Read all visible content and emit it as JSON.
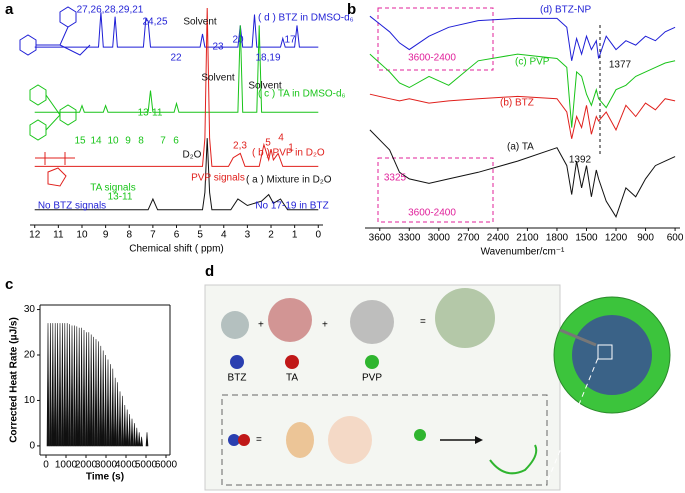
{
  "chart_data": [
    {
      "type": "line",
      "label": "a",
      "xlabel": "Chemical shift ( ppm)",
      "xlim": [
        12.2,
        -0.2
      ],
      "xticks": [
        12,
        11,
        10,
        9,
        8,
        7,
        6,
        5,
        4,
        3,
        2,
        1,
        0
      ],
      "ylim": [
        0,
        100
      ],
      "series": [
        {
          "name": "( d ) BTZ in DMSO-d₆",
          "color": "#1f1fd6",
          "x": [
            12,
            10,
            9.3,
            9.2,
            9.1,
            8.7,
            8.6,
            8.5,
            7.4,
            7.3,
            7.2,
            7.1,
            5.0,
            4.9,
            4.8,
            3.4,
            3.3,
            3.2,
            2.8,
            2.7,
            2.6,
            1.6,
            1.5,
            1.4,
            1.0,
            0.9,
            0.8,
            0
          ],
          "values": [
            82,
            82,
            82,
            98,
            82,
            82,
            96,
            82,
            82,
            95,
            94,
            82,
            82,
            88,
            82,
            82,
            92,
            82,
            82,
            97,
            82,
            82,
            86,
            82,
            82,
            92,
            82,
            82
          ]
        },
        {
          "name": "( c ) TA in DMSO-d₆",
          "color": "#19c419",
          "x": [
            12,
            10.1,
            10,
            9.9,
            9.1,
            9,
            8.9,
            7.2,
            7.1,
            7.0,
            6.1,
            6.0,
            5.9,
            3.4,
            3.3,
            3.2,
            2.6,
            2.5,
            2.4,
            0
          ],
          "values": [
            52,
            52,
            55,
            52,
            52,
            55,
            52,
            52,
            62,
            52,
            52,
            56,
            52,
            52,
            92,
            52,
            52,
            92,
            52,
            52
          ]
        },
        {
          "name": "( b ) PVP in D₂O",
          "color": "#e0201c",
          "x": [
            12,
            4.9,
            4.8,
            4.7,
            4.6,
            4.5,
            3.8,
            3.6,
            3.3,
            3.1,
            2.5,
            2.3,
            2.1,
            2.0,
            1.9,
            1.7,
            1.5,
            0
          ],
          "values": [
            27,
            27,
            40,
            100,
            40,
            27,
            27,
            31,
            33,
            27,
            27,
            37,
            30,
            35,
            30,
            33,
            27,
            27
          ]
        },
        {
          "name": "( a ) Mixture in D₂O",
          "color": "#111111",
          "x": [
            12,
            7.2,
            7.0,
            6.8,
            4.9,
            4.8,
            4.7,
            4.6,
            4.5,
            3.7,
            3.4,
            3.0,
            2.4,
            2.1,
            1.9,
            1.6,
            1.3,
            0
          ],
          "values": [
            7,
            7,
            12,
            7,
            7,
            15,
            40,
            15,
            7,
            7,
            12,
            9,
            11,
            14,
            10,
            12,
            7,
            7
          ]
        }
      ],
      "annotations": [
        {
          "text": "Solvent",
          "color": "#111111"
        },
        {
          "text": "Solvent",
          "color": "#111111"
        },
        {
          "text": "Solvent",
          "color": "#111111"
        },
        {
          "text": "D₂O",
          "color": "#111111"
        },
        {
          "text": "No BTZ signals",
          "color": "#1f1fd6"
        },
        {
          "text": "TA signals",
          "color": "#19c419"
        },
        {
          "text": "13-11",
          "color": "#19c419"
        },
        {
          "text": "PVP signals",
          "color": "#e0201c"
        },
        {
          "text": "No 17-19 in BTZ",
          "color": "#1f1fd6"
        },
        {
          "text": "27,26,28,29,21",
          "color": "#1f1fd6"
        },
        {
          "text": "24,25",
          "color": "#1f1fd6"
        },
        {
          "text": "22",
          "color": "#1f1fd6"
        },
        {
          "text": "23",
          "color": "#1f1fd6"
        },
        {
          "text": "20",
          "color": "#1f1fd6"
        },
        {
          "text": "17",
          "color": "#1f1fd6"
        },
        {
          "text": "18,19",
          "color": "#1f1fd6"
        },
        {
          "text": "13-11",
          "color": "#19c419"
        },
        {
          "text": "10",
          "color": "#19c419"
        },
        {
          "text": "9",
          "color": "#19c419"
        },
        {
          "text": "8",
          "color": "#19c419"
        },
        {
          "text": "7",
          "color": "#19c419"
        },
        {
          "text": "6",
          "color": "#19c419"
        },
        {
          "text": "15",
          "color": "#19c419"
        },
        {
          "text": "14",
          "color": "#19c419"
        },
        {
          "text": "2,3",
          "color": "#e0201c"
        },
        {
          "text": "5",
          "color": "#e0201c"
        },
        {
          "text": "4",
          "color": "#e0201c"
        },
        {
          "text": "1",
          "color": "#e0201c"
        }
      ]
    },
    {
      "type": "line",
      "label": "b",
      "xlabel": "Wavenumber/cm⁻¹",
      "xlim": [
        3750,
        550
      ],
      "xticks": [
        3600,
        3300,
        3000,
        2700,
        2400,
        2100,
        1800,
        1500,
        1200,
        900,
        600
      ],
      "ylim": [
        0,
        100
      ],
      "series": [
        {
          "name": "(d) BTZ-NP",
          "color": "#1f1fd6",
          "x": [
            3700,
            3500,
            3400,
            3300,
            3100,
            2900,
            2600,
            2200,
            1800,
            1700,
            1650,
            1600,
            1550,
            1500,
            1450,
            1400,
            1377,
            1300,
            1200,
            1100,
            1000,
            900,
            800,
            700,
            600
          ],
          "values": [
            95,
            88,
            83,
            80,
            86,
            90,
            93,
            94,
            94,
            90,
            75,
            85,
            78,
            86,
            80,
            84,
            76,
            86,
            80,
            84,
            82,
            86,
            84,
            88,
            90
          ]
        },
        {
          "name": "(c) PVP",
          "color": "#19c419",
          "x": [
            3700,
            3500,
            3400,
            3300,
            3100,
            2900,
            2600,
            2200,
            1800,
            1700,
            1650,
            1600,
            1550,
            1500,
            1450,
            1400,
            1377,
            1300,
            1200,
            1100,
            1000,
            900,
            800,
            700,
            600
          ],
          "values": [
            78,
            70,
            65,
            63,
            68,
            64,
            75,
            78,
            76,
            72,
            45,
            70,
            68,
            60,
            55,
            62,
            58,
            54,
            62,
            64,
            68,
            70,
            72,
            74,
            75
          ]
        },
        {
          "name": "(b) BTZ",
          "color": "#e0201c",
          "x": [
            3700,
            3500,
            3400,
            3300,
            3100,
            2900,
            2600,
            2200,
            1800,
            1700,
            1650,
            1600,
            1550,
            1500,
            1450,
            1400,
            1377,
            1300,
            1200,
            1100,
            1000,
            900,
            800,
            700,
            600
          ],
          "values": [
            60,
            58,
            57,
            58,
            56,
            57,
            58,
            59,
            58,
            52,
            40,
            50,
            45,
            55,
            42,
            50,
            48,
            52,
            44,
            55,
            50,
            56,
            53,
            58,
            57
          ]
        },
        {
          "name": "(a) TA",
          "color": "#111111",
          "x": [
            3700,
            3500,
            3400,
            3300,
            3100,
            2900,
            2600,
            2200,
            1800,
            1700,
            1650,
            1600,
            1550,
            1500,
            1450,
            1400,
            1377,
            1300,
            1200,
            1100,
            1000,
            900,
            800,
            700,
            600
          ],
          "values": [
            44,
            35,
            25,
            22,
            20,
            22,
            25,
            30,
            36,
            28,
            15,
            30,
            18,
            28,
            14,
            26,
            22,
            12,
            5,
            18,
            14,
            22,
            28,
            30,
            32
          ]
        }
      ],
      "annotations": [
        {
          "text": "3600-2400",
          "color": "#e0209a"
        },
        {
          "text": "3600-2400",
          "color": "#e0209a"
        },
        {
          "text": "3325",
          "color": "#e0209a"
        },
        {
          "text": "1377",
          "color": "#111111"
        },
        {
          "text": "1392",
          "color": "#111111"
        }
      ]
    },
    {
      "type": "bar",
      "label": "c",
      "xlabel": "Time (s)",
      "ylabel": "Corrected Heat Rate (μJ/s)",
      "xlim": [
        -300,
        6200
      ],
      "xticks": [
        0,
        1000,
        2000,
        3000,
        4000,
        5000,
        6000
      ],
      "ylim": [
        -2,
        31
      ],
      "yticks": [
        0,
        10,
        20,
        30
      ],
      "color": "#111111",
      "x": [
        100,
        220,
        340,
        460,
        580,
        700,
        820,
        940,
        1060,
        1180,
        1300,
        1420,
        1540,
        1660,
        1780,
        1900,
        2020,
        2140,
        2260,
        2380,
        2500,
        2620,
        2740,
        2860,
        2980,
        3100,
        3220,
        3340,
        3460,
        3580,
        3700,
        3820,
        3940,
        4060,
        4180,
        4300,
        4420,
        4540,
        4660,
        4780,
        5050
      ],
      "values": [
        27,
        27,
        27,
        27,
        27,
        27,
        27,
        27,
        27,
        26.8,
        26.5,
        26.5,
        26.3,
        26,
        26,
        25.5,
        25,
        25,
        24.5,
        24,
        23.5,
        23,
        22,
        21,
        20,
        19,
        18,
        17,
        15,
        14,
        12,
        11,
        9,
        8,
        7,
        6,
        5,
        4,
        3,
        2,
        3
      ]
    }
  ],
  "diagram": {
    "label": "d",
    "items": [
      "BTZ",
      "TA",
      "PVP"
    ]
  }
}
